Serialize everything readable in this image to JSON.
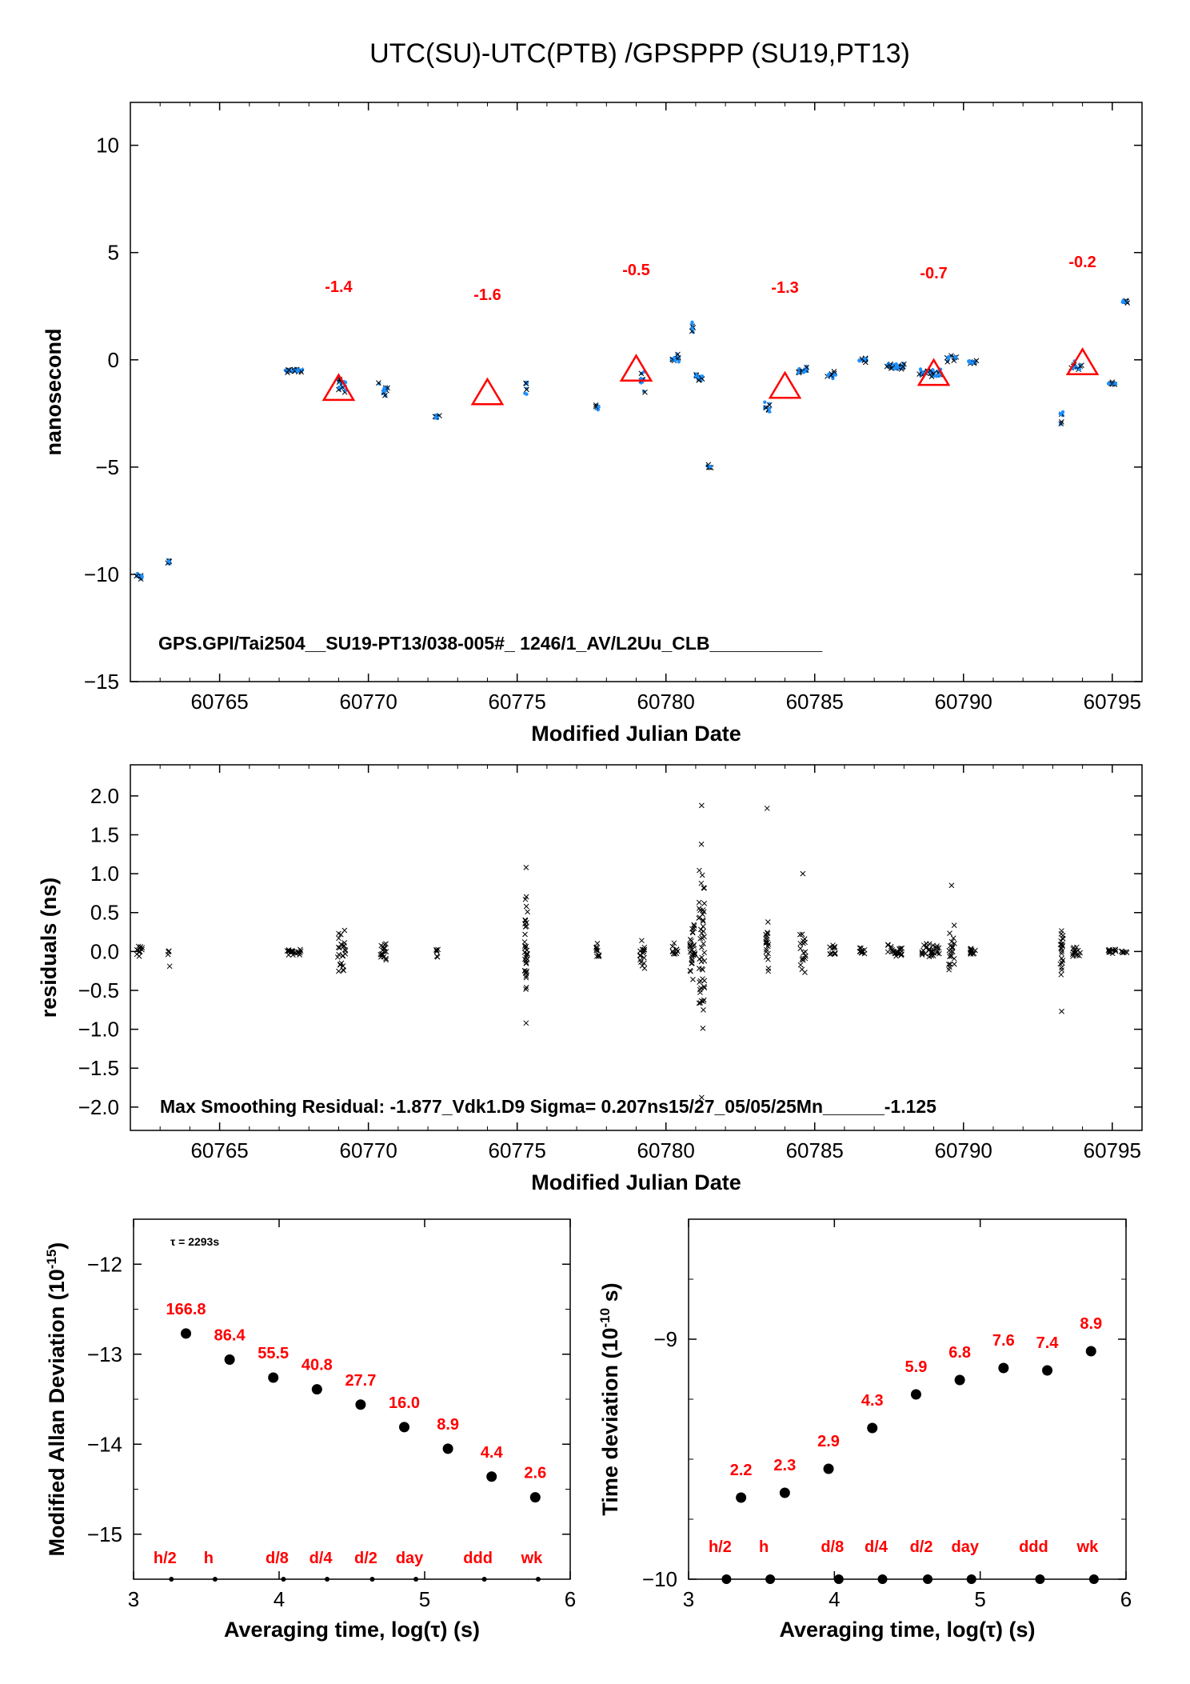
{
  "title": "UTC(SU)-UTC(PTB)  /GPSPPP  (SU19,PT13)",
  "colors": {
    "marker_red": "#ff0000",
    "series_blue": "#1e90ff",
    "black": "#000000"
  },
  "chart_data": [
    {
      "id": "time_offset",
      "type": "scatter",
      "xlabel": "Modified Julian Date",
      "ylabel": "nanosecond",
      "xlim": [
        60762,
        60796
      ],
      "ylim": [
        -15,
        12
      ],
      "x_ticks": [
        60765,
        60770,
        60775,
        60780,
        60785,
        60790,
        60795
      ],
      "y_ticks": [
        10,
        5,
        0,
        -5,
        -10,
        -15
      ],
      "y_tick_labels": [
        "10",
        "5",
        "0",
        "−5",
        "−10",
        "−15"
      ],
      "annotation": "GPS.GPI/Tai2504__SU19-PT13/038-005#_  1246/1_AV/L2Uu_CLB___________",
      "segments": [
        {
          "x": 60762.3,
          "y": -10.1,
          "spread": 0.2,
          "spanx": 0.2
        },
        {
          "x": 60763.3,
          "y": -9.4,
          "spread": 0.2,
          "spanx": 0.1
        },
        {
          "x": 60767.5,
          "y": -0.5,
          "spread": 0.1,
          "spanx": 0.6
        },
        {
          "x": 60769.1,
          "y": -1.2,
          "spread": 0.5,
          "spanx": 0.3
        },
        {
          "x": 60770.5,
          "y": -1.4,
          "spread": 0.4,
          "spanx": 0.3
        },
        {
          "x": 60772.3,
          "y": -2.7,
          "spread": 0.2,
          "spanx": 0.1
        },
        {
          "x": 60775.3,
          "y": -1.0,
          "spread": 0.9,
          "spanx": 0.1
        },
        {
          "x": 60777.7,
          "y": -2.2,
          "spread": 0.2,
          "spanx": 0.1
        },
        {
          "x": 60779.2,
          "y": -1.0,
          "spread": 0.7,
          "spanx": 0.2
        },
        {
          "x": 60780.3,
          "y": 0.1,
          "spread": 0.3,
          "spanx": 0.3
        },
        {
          "x": 60780.9,
          "y": 1.5,
          "spread": 0.4,
          "spanx": 0.1
        },
        {
          "x": 60781.1,
          "y": -0.8,
          "spread": 0.3,
          "spanx": 0.3
        },
        {
          "x": 60781.4,
          "y": -5.0,
          "spread": 0.1,
          "spanx": 0.2
        },
        {
          "x": 60783.4,
          "y": -2.2,
          "spread": 0.4,
          "spanx": 0.2
        },
        {
          "x": 60784.6,
          "y": -0.5,
          "spread": 0.3,
          "spanx": 0.3
        },
        {
          "x": 60785.6,
          "y": -0.7,
          "spread": 0.2,
          "spanx": 0.3
        },
        {
          "x": 60786.6,
          "y": 0.0,
          "spread": 0.1,
          "spanx": 0.3
        },
        {
          "x": 60787.7,
          "y": -0.3,
          "spread": 0.2,
          "spanx": 0.6
        },
        {
          "x": 60788.9,
          "y": -0.6,
          "spread": 0.3,
          "spanx": 0.7
        },
        {
          "x": 60789.6,
          "y": 0.1,
          "spread": 0.2,
          "spanx": 0.3
        },
        {
          "x": 60790.3,
          "y": -0.1,
          "spread": 0.1,
          "spanx": 0.3
        },
        {
          "x": 60793.3,
          "y": -2.5,
          "spread": 0.9,
          "spanx": 0.1
        },
        {
          "x": 60793.8,
          "y": -0.3,
          "spread": 0.3,
          "spanx": 0.3
        },
        {
          "x": 60795.0,
          "y": -1.1,
          "spread": 0.1,
          "spanx": 0.3
        },
        {
          "x": 60795.4,
          "y": 2.7,
          "spread": 0.1,
          "spanx": 0.2
        }
      ],
      "triangles": [
        {
          "x": 60769,
          "y": -1.4,
          "label": "-1.4"
        },
        {
          "x": 60774,
          "y": -1.6,
          "label": "-1.6"
        },
        {
          "x": 60779,
          "y": -0.5,
          "label": "-0.5"
        },
        {
          "x": 60784,
          "y": -1.3,
          "label": "-1.3"
        },
        {
          "x": 60789,
          "y": -0.7,
          "label": "-0.7"
        },
        {
          "x": 60794,
          "y": -0.2,
          "label": "-0.2"
        }
      ]
    },
    {
      "id": "residuals",
      "type": "scatter",
      "xlabel": "Modified Julian Date",
      "ylabel": "residuals (ns)",
      "xlim": [
        60762,
        60796
      ],
      "ylim": [
        -2.3,
        2.4
      ],
      "x_ticks": [
        60765,
        60770,
        60775,
        60780,
        60785,
        60790,
        60795
      ],
      "y_ticks": [
        2.0,
        1.5,
        1.0,
        0.5,
        0.0,
        -0.5,
        -1.0,
        -1.5,
        -2.0
      ],
      "y_tick_labels": [
        "2.0",
        "1.5",
        "1.0",
        "0.5",
        "0.0",
        "−0.5",
        "−1.0",
        "−1.5",
        "−2.0"
      ],
      "annotation": "Max Smoothing Residual: -1.877_Vdk1.D9  Sigma= 0.207ns15/27_05/05/25Mn______-1.125",
      "clusters": [
        {
          "x": 60762.3,
          "spread": 0.1,
          "spanx": 0.2,
          "n": 12
        },
        {
          "x": 60763.3,
          "spread": 0.25,
          "spanx": 0.1,
          "n": 5
        },
        {
          "x": 60767.5,
          "spread": 0.06,
          "spanx": 0.5,
          "n": 20
        },
        {
          "x": 60769.1,
          "spread": 0.35,
          "spanx": 0.3,
          "n": 25
        },
        {
          "x": 60770.5,
          "spread": 0.25,
          "spanx": 0.2,
          "n": 18
        },
        {
          "x": 60772.3,
          "spread": 0.1,
          "spanx": 0.1,
          "n": 6
        },
        {
          "x": 60775.3,
          "spread": 0.9,
          "spanx": 0.1,
          "n": 35
        },
        {
          "x": 60777.7,
          "spread": 0.15,
          "spanx": 0.1,
          "n": 10
        },
        {
          "x": 60779.2,
          "spread": 0.3,
          "spanx": 0.2,
          "n": 18
        },
        {
          "x": 60780.3,
          "spread": 0.15,
          "spanx": 0.2,
          "n": 10
        },
        {
          "x": 60780.9,
          "spread": 0.5,
          "spanx": 0.2,
          "n": 30
        },
        {
          "x": 60781.2,
          "spread": 1.6,
          "spanx": 0.2,
          "n": 50
        },
        {
          "x": 60783.4,
          "spread": 0.5,
          "spanx": 0.1,
          "n": 20
        },
        {
          "x": 60784.6,
          "spread": 0.5,
          "spanx": 0.2,
          "n": 18
        },
        {
          "x": 60785.6,
          "spread": 0.12,
          "spanx": 0.2,
          "n": 12
        },
        {
          "x": 60786.6,
          "spread": 0.06,
          "spanx": 0.2,
          "n": 10
        },
        {
          "x": 60787.7,
          "spread": 0.15,
          "spanx": 0.5,
          "n": 25
        },
        {
          "x": 60788.9,
          "spread": 0.15,
          "spanx": 0.6,
          "n": 30
        },
        {
          "x": 60789.6,
          "spread": 0.5,
          "spanx": 0.2,
          "n": 20
        },
        {
          "x": 60790.3,
          "spread": 0.08,
          "spanx": 0.2,
          "n": 12
        },
        {
          "x": 60793.3,
          "spread": 0.5,
          "spanx": 0.1,
          "n": 22
        },
        {
          "x": 60793.8,
          "spread": 0.1,
          "spanx": 0.3,
          "n": 15
        },
        {
          "x": 60795.0,
          "spread": 0.05,
          "spanx": 0.3,
          "n": 12
        },
        {
          "x": 60795.4,
          "spread": 0.04,
          "spanx": 0.2,
          "n": 8
        }
      ],
      "extremes": [
        {
          "x": 60781.2,
          "y": 1.877
        },
        {
          "x": 60783.4,
          "y": 1.84
        },
        {
          "x": 60781.2,
          "y": -1.877
        },
        {
          "x": 60775.3,
          "y": 1.08
        },
        {
          "x": 60775.3,
          "y": -0.92
        },
        {
          "x": 60784.6,
          "y": 1.0
        },
        {
          "x": 60793.3,
          "y": -0.77
        },
        {
          "x": 60789.6,
          "y": 0.85
        }
      ]
    },
    {
      "id": "mdev",
      "type": "scatter",
      "xlabel": "Averaging time, log(τ) (s)",
      "ylabel": "Modified Allan Deviation (10^-15)",
      "ylabel_main": "Modified Allan Deviation (10",
      "ylabel_exp": "-15",
      "ylabel_close": ")",
      "xlim": [
        3,
        6
      ],
      "ylim": [
        -15.5,
        -11.5
      ],
      "x_ticks": [
        3,
        4,
        5,
        6
      ],
      "y_ticks": [
        -12,
        -13,
        -14,
        -15
      ],
      "y_tick_labels": [
        "−12",
        "−13",
        "−14",
        "−15"
      ],
      "annotation": "τ = 2293s",
      "points": [
        {
          "x": 3.36,
          "y": -12.77,
          "label": "166.8"
        },
        {
          "x": 3.66,
          "y": -13.06,
          "label": "86.4"
        },
        {
          "x": 3.96,
          "y": -13.26,
          "label": "55.5"
        },
        {
          "x": 4.26,
          "y": -13.39,
          "label": "40.8"
        },
        {
          "x": 4.56,
          "y": -13.56,
          "label": "27.7"
        },
        {
          "x": 4.86,
          "y": -13.81,
          "label": "16.0"
        },
        {
          "x": 5.16,
          "y": -14.05,
          "label": "8.9"
        },
        {
          "x": 5.46,
          "y": -14.36,
          "label": "4.4"
        },
        {
          "x": 5.76,
          "y": -14.59,
          "label": "2.6"
        }
      ],
      "markers": [
        {
          "x": 3.26,
          "label": "h/2"
        },
        {
          "x": 3.56,
          "label": "h"
        },
        {
          "x": 4.03,
          "label": "d/8"
        },
        {
          "x": 4.33,
          "label": "d/4"
        },
        {
          "x": 4.64,
          "label": "d/2"
        },
        {
          "x": 4.94,
          "label": "day"
        },
        {
          "x": 5.41,
          "label": "ddd"
        },
        {
          "x": 5.78,
          "label": "wk"
        }
      ]
    },
    {
      "id": "tdev",
      "type": "scatter",
      "xlabel": "Averaging time, log(τ) (s)",
      "ylabel": "Time deviation (10^-10 s)",
      "ylabel_main": "Time deviation (10",
      "ylabel_exp": "-10",
      "ylabel_close": " s)",
      "xlim": [
        3,
        6
      ],
      "ylim": [
        -10,
        -8.5
      ],
      "x_ticks": [
        3,
        4,
        5,
        6
      ],
      "y_ticks": [
        -9,
        -10
      ],
      "y_tick_labels": [
        "−9",
        "−10"
      ],
      "points": [
        {
          "x": 3.36,
          "y": -9.66,
          "label": "2.2"
        },
        {
          "x": 3.66,
          "y": -9.64,
          "label": "2.3"
        },
        {
          "x": 3.96,
          "y": -9.54,
          "label": "2.9"
        },
        {
          "x": 4.26,
          "y": -9.37,
          "label": "4.3"
        },
        {
          "x": 4.56,
          "y": -9.23,
          "label": "5.9"
        },
        {
          "x": 4.86,
          "y": -9.17,
          "label": "6.8"
        },
        {
          "x": 5.16,
          "y": -9.12,
          "label": "7.6"
        },
        {
          "x": 5.46,
          "y": -9.13,
          "label": "7.4"
        },
        {
          "x": 5.76,
          "y": -9.05,
          "label": "8.9"
        }
      ],
      "markers": [
        {
          "x": 3.26,
          "label": "h/2"
        },
        {
          "x": 3.56,
          "label": "h"
        },
        {
          "x": 4.03,
          "label": "d/8"
        },
        {
          "x": 4.33,
          "label": "d/4"
        },
        {
          "x": 4.64,
          "label": "d/2"
        },
        {
          "x": 4.94,
          "label": "day"
        },
        {
          "x": 5.41,
          "label": "ddd"
        },
        {
          "x": 5.78,
          "label": "wk"
        }
      ]
    }
  ]
}
